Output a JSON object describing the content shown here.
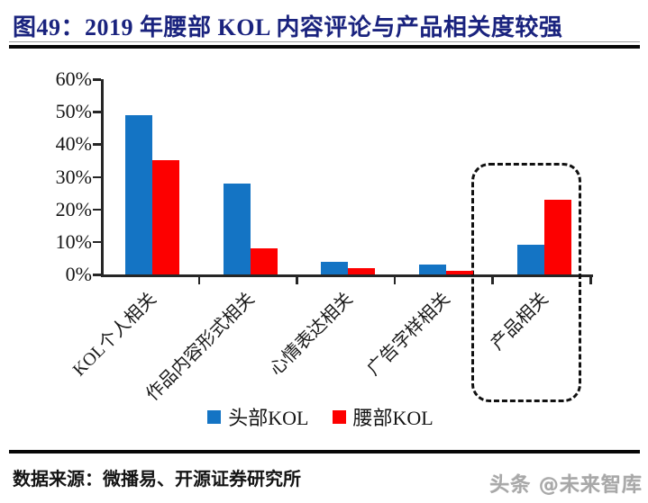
{
  "figure": {
    "title": "图49：2019 年腰部 KOL 内容评论与产品相关度较强"
  },
  "chart_data": {
    "type": "bar",
    "title": "2019 年腰部 KOL 内容评论与产品相关度较强",
    "categories": [
      "KOL个人相关",
      "作品内容形式相关",
      "心情表达相关",
      "广告字样相关",
      "产品相关"
    ],
    "series": [
      {
        "name": "头部KOL",
        "color": "#1474C4",
        "values": [
          49,
          28,
          4,
          3,
          9
        ]
      },
      {
        "name": "腰部KOL",
        "color": "#FD0000",
        "values": [
          35,
          8,
          2,
          1,
          23
        ]
      }
    ],
    "unit": "%",
    "ylim": [
      0,
      60
    ],
    "ytick_step": 10,
    "ytick_labels": [
      "0%",
      "10%",
      "20%",
      "30%",
      "40%",
      "50%",
      "60%"
    ],
    "grid": false,
    "legend_position": "bottom",
    "highlight": {
      "category": "产品相关",
      "style": "dashed-rounded-box"
    }
  },
  "footer": {
    "source": "数据来源：微播易、开源证券研究所",
    "watermark": "头条 @未来智库"
  }
}
